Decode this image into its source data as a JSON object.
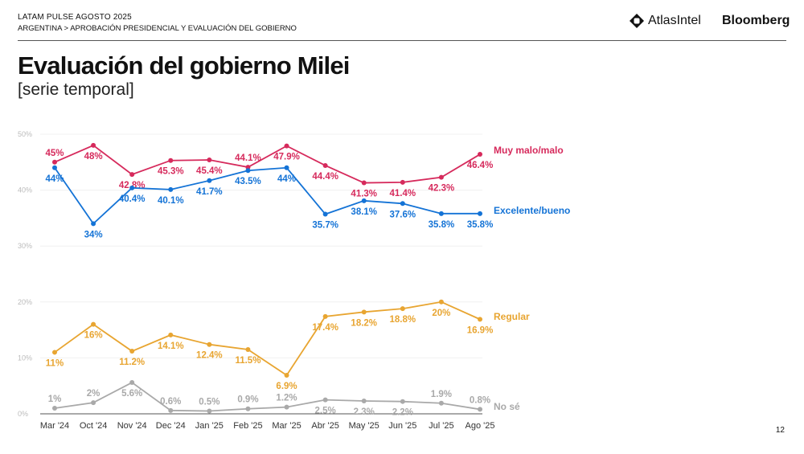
{
  "header": {
    "kicker": "LATAM PULSE AGOSTO 2025",
    "breadcrumb": "ARGENTINA > APROBACIÓN PRESIDENCIAL Y EVALUACIÓN DEL GOBIERNO",
    "logos": [
      "AtlasIntel",
      "Bloomberg"
    ]
  },
  "title": "Evaluación del gobierno Milei",
  "subtitle": "[serie temporal]",
  "page_number": "12",
  "chart_data": {
    "type": "line",
    "categories": [
      "Mar '24",
      "Oct '24",
      "Nov '24",
      "Dec '24",
      "Jan '25",
      "Feb '25",
      "Mar '25",
      "Abr '25",
      "May '25",
      "Jun '25",
      "Jul '25",
      "Ago '25"
    ],
    "ylim": [
      0,
      50
    ],
    "yticks": [
      "0%",
      "10%",
      "20%",
      "30%",
      "40%",
      "50%"
    ],
    "grid": true,
    "legend": "right, labels at line ends",
    "series": [
      {
        "name": "Muy malo/malo",
        "color": "#d62a5c",
        "values": [
          45,
          48,
          42.8,
          45.3,
          45.4,
          44.1,
          47.9,
          44.4,
          41.3,
          41.4,
          42.3,
          46.4
        ],
        "labels": [
          "45%",
          "48%",
          "42.8%",
          "45.3%",
          "45.4%",
          "44.1%",
          "47.9%",
          "44.4%",
          "41.3%",
          "41.4%",
          "42.3%",
          "46.4%"
        ]
      },
      {
        "name": "Excelente/bueno",
        "color": "#1473d6",
        "values": [
          44,
          34,
          40.4,
          40.1,
          41.7,
          43.5,
          44,
          35.7,
          38.1,
          37.6,
          35.8,
          35.8
        ],
        "labels": [
          "44%",
          "34%",
          "40.4%",
          "40.1%",
          "41.7%",
          "43.5%",
          "44%",
          "35.7%",
          "38.1%",
          "37.6%",
          "35.8%",
          "35.8%"
        ]
      },
      {
        "name": "Regular",
        "color": "#e8a531",
        "values": [
          11,
          16,
          11.2,
          14.1,
          12.4,
          11.5,
          6.9,
          17.4,
          18.2,
          18.8,
          20,
          16.9
        ],
        "labels": [
          "11%",
          "16%",
          "11.2%",
          "14.1%",
          "12.4%",
          "11.5%",
          "6.9%",
          "17.4%",
          "18.2%",
          "18.8%",
          "20%",
          "16.9%"
        ]
      },
      {
        "name": "No sé",
        "color": "#a9a9a9",
        "values": [
          1,
          2,
          5.6,
          0.6,
          0.5,
          0.9,
          1.2,
          2.5,
          2.3,
          2.2,
          1.9,
          0.8
        ],
        "labels": [
          "1%",
          "2%",
          "5.6%",
          "0.6%",
          "0.5%",
          "0.9%",
          "1.2%",
          "2.5%",
          "2.3%",
          "2.2%",
          "1.9%",
          "0.8%"
        ]
      }
    ]
  }
}
